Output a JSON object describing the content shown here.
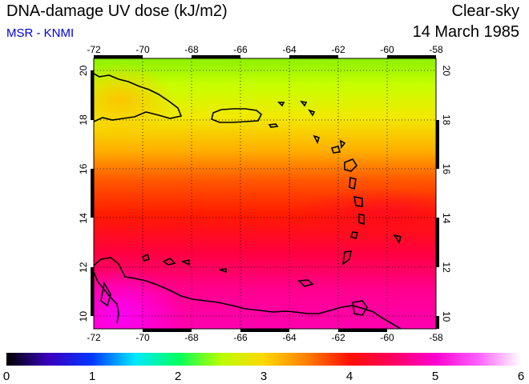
{
  "header": {
    "title": "DNA-damage UV dose (kJ/m2)",
    "subtitle": "MSR - KNMI",
    "condition": "Clear-sky",
    "date": "14 March 1985"
  },
  "map": {
    "lon_range": [
      -72,
      -58
    ],
    "lat_range": [
      9.5,
      20.5
    ],
    "lon_ticks": [
      "-72",
      "-70",
      "-68",
      "-66",
      "-64",
      "-62",
      "-60",
      "-58"
    ],
    "lat_ticks": [
      "10",
      "12",
      "14",
      "16",
      "18",
      "20"
    ],
    "grid": "dotted"
  },
  "colorbar": {
    "min": 0,
    "max": 6,
    "ticks": [
      "0",
      "1",
      "2",
      "3",
      "4",
      "5",
      "6"
    ],
    "colors": [
      "#000000",
      "#3a00c0",
      "#0038ff",
      "#00e8ff",
      "#00ff60",
      "#b8ff00",
      "#ffd800",
      "#ff8000",
      "#ff1000",
      "#ff0060",
      "#ff00d0",
      "#ff60ff",
      "#ffffff"
    ]
  }
}
